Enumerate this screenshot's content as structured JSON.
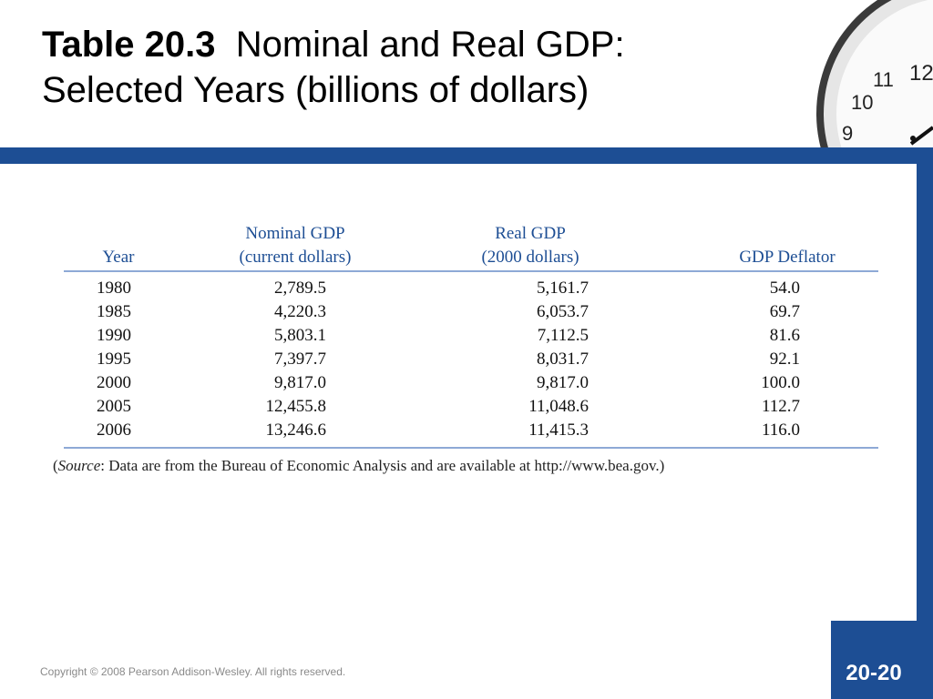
{
  "slide": {
    "title_bold": "Table 20.3",
    "title_line1": "Nominal and Real GDP:",
    "title_line2": "Selected Years (billions of dollars)",
    "copyright": "Copyright © 2008 Pearson Addison-Wesley. All rights reserved.",
    "page_number": "20-20",
    "accent_color": "#1d4e94"
  },
  "clock": {
    "numerals": [
      "12",
      "11",
      "10",
      "9"
    ]
  },
  "table": {
    "headers": {
      "year": "Year",
      "nominal_line1": "Nominal GDP",
      "nominal_line2": "(current dollars)",
      "real_line1": "Real GDP",
      "real_line2": "(2000 dollars)",
      "deflator": "GDP Deflator"
    },
    "rows": [
      {
        "year": "1980",
        "nominal": "2,789.5",
        "real": "5,161.7",
        "deflator": "54.0"
      },
      {
        "year": "1985",
        "nominal": "4,220.3",
        "real": "6,053.7",
        "deflator": "69.7"
      },
      {
        "year": "1990",
        "nominal": "5,803.1",
        "real": "7,112.5",
        "deflator": "81.6"
      },
      {
        "year": "1995",
        "nominal": "7,397.7",
        "real": "8,031.7",
        "deflator": "92.1"
      },
      {
        "year": "2000",
        "nominal": "9,817.0",
        "real": "9,817.0",
        "deflator": "100.0"
      },
      {
        "year": "2005",
        "nominal": "12,455.8",
        "real": "11,048.6",
        "deflator": "112.7"
      },
      {
        "year": "2006",
        "nominal": "13,246.6",
        "real": "11,415.3",
        "deflator": "116.0"
      }
    ],
    "source": {
      "open": "(",
      "label": "Source",
      "text": ": Data are from the Bureau of Economic Analysis and are available at http://www.bea.gov.)"
    }
  }
}
